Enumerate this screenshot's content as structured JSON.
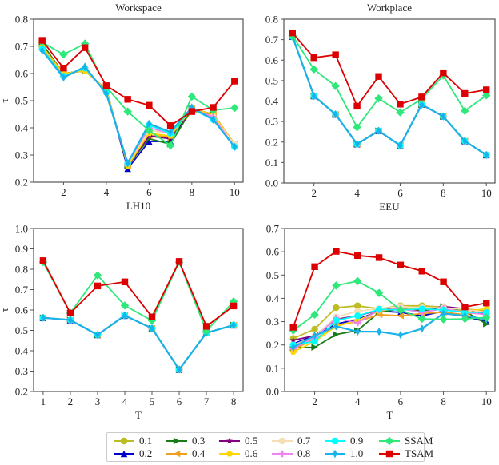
{
  "chart_data": [
    {
      "type": "line",
      "title": "Workspace",
      "xlabel": "LH10",
      "ylabel": "τ",
      "xlim": [
        0.6,
        10.4
      ],
      "ylim": [
        0.2,
        0.8
      ],
      "xticks": [
        2,
        4,
        6,
        8,
        10
      ],
      "yticks": [
        0.2,
        0.3,
        0.4,
        0.5,
        0.6,
        0.7,
        0.8
      ],
      "ytick_labels": [
        "0.2",
        "0.3",
        "0.4",
        "0.5",
        "0.6",
        "0.7",
        "0.8"
      ],
      "x": [
        1,
        2,
        3,
        4,
        5,
        6,
        7,
        8,
        9,
        10
      ],
      "series": [
        {
          "name": "0.1",
          "values": [
            0.7,
            0.6,
            0.61,
            0.54,
            0.26,
            0.37,
            0.36,
            0.46,
            0.45,
            0.34
          ]
        },
        {
          "name": "0.2",
          "values": [
            0.7,
            0.6,
            0.61,
            0.54,
            0.25,
            0.35,
            0.35,
            0.47,
            0.44,
            0.34
          ]
        },
        {
          "name": "0.3",
          "values": [
            0.71,
            0.6,
            0.61,
            0.54,
            0.26,
            0.36,
            0.34,
            0.47,
            0.45,
            0.34
          ]
        },
        {
          "name": "0.4",
          "values": [
            0.7,
            0.6,
            0.61,
            0.54,
            0.26,
            0.37,
            0.37,
            0.47,
            0.45,
            0.34
          ]
        },
        {
          "name": "0.5",
          "values": [
            0.7,
            0.6,
            0.61,
            0.54,
            0.26,
            0.37,
            0.36,
            0.47,
            0.45,
            0.34
          ]
        },
        {
          "name": "0.6",
          "values": [
            0.7,
            0.6,
            0.61,
            0.54,
            0.26,
            0.38,
            0.37,
            0.47,
            0.45,
            0.34
          ]
        },
        {
          "name": "0.7",
          "values": [
            0.69,
            0.59,
            0.62,
            0.53,
            0.27,
            0.39,
            0.38,
            0.47,
            0.44,
            0.34
          ]
        },
        {
          "name": "0.8",
          "values": [
            0.69,
            0.59,
            0.62,
            0.53,
            0.27,
            0.4,
            0.38,
            0.47,
            0.44,
            0.33
          ]
        },
        {
          "name": "0.9",
          "values": [
            0.69,
            0.59,
            0.62,
            0.53,
            0.27,
            0.41,
            0.38,
            0.47,
            0.43,
            0.33
          ]
        },
        {
          "name": "1.0",
          "values": [
            0.685,
            0.585,
            0.625,
            0.525,
            0.27,
            0.415,
            0.385,
            0.475,
            0.43,
            0.33
          ]
        },
        {
          "name": "SSAM",
          "values": [
            0.715,
            0.67,
            0.71,
            0.55,
            0.46,
            0.39,
            0.335,
            0.515,
            0.465,
            0.473
          ]
        },
        {
          "name": "TSAM",
          "values": [
            0.722,
            0.62,
            0.695,
            0.555,
            0.505,
            0.483,
            0.408,
            0.46,
            0.475,
            0.572
          ]
        }
      ]
    },
    {
      "type": "line",
      "title": "Workplace",
      "xlabel": "EEU",
      "ylabel": "",
      "xlim": [
        0.6,
        10.4
      ],
      "ylim": [
        0.0,
        0.8
      ],
      "xticks": [
        2,
        4,
        6,
        8,
        10
      ],
      "yticks": [
        0.0,
        0.1,
        0.2,
        0.3,
        0.4,
        0.5,
        0.6,
        0.7,
        0.8
      ],
      "ytick_labels": [
        "0.0",
        "0.1",
        "0.2",
        "0.3",
        "0.4",
        "0.5",
        "0.6",
        "0.7",
        "0.8"
      ],
      "x": [
        1,
        2,
        3,
        4,
        5,
        6,
        7,
        8,
        9,
        10
      ],
      "series": [
        {
          "name": "0.1",
          "values": [
            0.715,
            0.425,
            0.335,
            0.19,
            0.255,
            0.183,
            0.383,
            0.325,
            0.205,
            0.137
          ]
        },
        {
          "name": "0.2",
          "values": [
            0.715,
            0.425,
            0.335,
            0.19,
            0.255,
            0.183,
            0.383,
            0.325,
            0.205,
            0.137
          ]
        },
        {
          "name": "0.3",
          "values": [
            0.715,
            0.425,
            0.335,
            0.19,
            0.255,
            0.183,
            0.383,
            0.325,
            0.205,
            0.137
          ]
        },
        {
          "name": "0.4",
          "values": [
            0.715,
            0.425,
            0.335,
            0.19,
            0.255,
            0.183,
            0.383,
            0.325,
            0.205,
            0.137
          ]
        },
        {
          "name": "0.5",
          "values": [
            0.715,
            0.425,
            0.335,
            0.19,
            0.255,
            0.183,
            0.383,
            0.325,
            0.205,
            0.137
          ]
        },
        {
          "name": "0.6",
          "values": [
            0.715,
            0.425,
            0.335,
            0.19,
            0.255,
            0.183,
            0.383,
            0.325,
            0.205,
            0.137
          ]
        },
        {
          "name": "0.7",
          "values": [
            0.715,
            0.425,
            0.335,
            0.19,
            0.255,
            0.183,
            0.383,
            0.325,
            0.205,
            0.137
          ]
        },
        {
          "name": "0.8",
          "values": [
            0.715,
            0.425,
            0.335,
            0.19,
            0.255,
            0.183,
            0.383,
            0.325,
            0.205,
            0.137
          ]
        },
        {
          "name": "0.9",
          "values": [
            0.715,
            0.425,
            0.335,
            0.19,
            0.255,
            0.183,
            0.383,
            0.325,
            0.205,
            0.137
          ]
        },
        {
          "name": "1.0",
          "values": [
            0.715,
            0.425,
            0.335,
            0.19,
            0.255,
            0.183,
            0.383,
            0.325,
            0.205,
            0.137
          ]
        },
        {
          "name": "SSAM",
          "values": [
            0.72,
            0.555,
            0.473,
            0.272,
            0.413,
            0.345,
            0.41,
            0.525,
            0.352,
            0.428
          ]
        },
        {
          "name": "TSAM",
          "values": [
            0.733,
            0.612,
            0.626,
            0.375,
            0.52,
            0.385,
            0.42,
            0.538,
            0.437,
            0.455
          ]
        }
      ]
    },
    {
      "type": "line",
      "title": "",
      "xlabel": "T",
      "ylabel": "τ",
      "xlim": [
        0.65,
        8.35
      ],
      "ylim": [
        0.2,
        1.0
      ],
      "xticks": [
        1,
        2,
        3,
        4,
        5,
        6,
        7,
        8
      ],
      "yticks": [
        0.2,
        0.3,
        0.4,
        0.5,
        0.6,
        0.7,
        0.8,
        0.9,
        1.0
      ],
      "ytick_labels": [
        "0.2",
        "0.3",
        "0.4",
        "0.5",
        "0.6",
        "0.7",
        "0.8",
        "0.9",
        "1.0"
      ],
      "x": [
        1,
        2,
        3,
        4,
        5,
        6,
        7,
        8
      ],
      "series": [
        {
          "name": "0.1",
          "values": [
            0.562,
            0.551,
            0.478,
            0.573,
            0.51,
            0.308,
            0.488,
            0.526
          ]
        },
        {
          "name": "0.2",
          "values": [
            0.562,
            0.551,
            0.478,
            0.573,
            0.51,
            0.308,
            0.488,
            0.526
          ]
        },
        {
          "name": "0.3",
          "values": [
            0.562,
            0.551,
            0.478,
            0.573,
            0.51,
            0.308,
            0.488,
            0.526
          ]
        },
        {
          "name": "0.4",
          "values": [
            0.562,
            0.551,
            0.478,
            0.573,
            0.51,
            0.308,
            0.488,
            0.526
          ]
        },
        {
          "name": "0.5",
          "values": [
            0.562,
            0.551,
            0.478,
            0.573,
            0.51,
            0.308,
            0.488,
            0.526
          ]
        },
        {
          "name": "0.6",
          "values": [
            0.562,
            0.551,
            0.478,
            0.573,
            0.51,
            0.308,
            0.488,
            0.526
          ]
        },
        {
          "name": "0.7",
          "values": [
            0.562,
            0.551,
            0.478,
            0.573,
            0.51,
            0.308,
            0.488,
            0.526
          ]
        },
        {
          "name": "0.8",
          "values": [
            0.562,
            0.551,
            0.478,
            0.573,
            0.51,
            0.308,
            0.488,
            0.526
          ]
        },
        {
          "name": "0.9",
          "values": [
            0.562,
            0.551,
            0.478,
            0.573,
            0.51,
            0.308,
            0.488,
            0.526
          ]
        },
        {
          "name": "1.0",
          "values": [
            0.562,
            0.551,
            0.478,
            0.573,
            0.51,
            0.308,
            0.488,
            0.526
          ]
        },
        {
          "name": "SSAM",
          "values": [
            0.835,
            0.585,
            0.77,
            0.622,
            0.548,
            0.835,
            0.497,
            0.642
          ]
        },
        {
          "name": "TSAM",
          "values": [
            0.842,
            0.585,
            0.718,
            0.738,
            0.566,
            0.838,
            0.52,
            0.62
          ]
        }
      ]
    },
    {
      "type": "line",
      "title": "",
      "xlabel": "T",
      "ylabel": "",
      "xlim": [
        0.6,
        10.4
      ],
      "ylim": [
        0.0,
        0.7
      ],
      "xticks": [
        2,
        4,
        6,
        8,
        10
      ],
      "yticks": [
        0.0,
        0.1,
        0.2,
        0.3,
        0.4,
        0.5,
        0.6,
        0.7
      ],
      "ytick_labels": [
        "0.0",
        "0.1",
        "0.2",
        "0.3",
        "0.4",
        "0.5",
        "0.6",
        "0.7"
      ],
      "x": [
        1,
        2,
        3,
        4,
        5,
        6,
        7,
        8,
        9,
        10
      ],
      "series": [
        {
          "name": "0.1",
          "values": [
            0.228,
            0.268,
            0.36,
            0.368,
            0.355,
            0.368,
            0.368,
            0.362,
            0.355,
            0.345
          ]
        },
        {
          "name": "0.2",
          "values": [
            0.205,
            0.24,
            0.29,
            0.31,
            0.345,
            0.34,
            0.325,
            0.345,
            0.322,
            0.3
          ]
        },
        {
          "name": "0.3",
          "values": [
            0.188,
            0.19,
            0.245,
            0.262,
            0.34,
            0.355,
            0.345,
            0.365,
            0.345,
            0.29
          ]
        },
        {
          "name": "0.4",
          "values": [
            0.18,
            0.225,
            0.285,
            0.3,
            0.33,
            0.325,
            0.335,
            0.34,
            0.33,
            0.35
          ]
        },
        {
          "name": "0.5",
          "values": [
            0.22,
            0.24,
            0.31,
            0.325,
            0.35,
            0.36,
            0.35,
            0.365,
            0.355,
            0.33
          ]
        },
        {
          "name": "0.6",
          "values": [
            0.17,
            0.215,
            0.28,
            0.305,
            0.345,
            0.36,
            0.355,
            0.35,
            0.345,
            0.355
          ]
        },
        {
          "name": "0.7",
          "values": [
            0.2,
            0.235,
            0.32,
            0.345,
            0.355,
            0.365,
            0.36,
            0.36,
            0.352,
            0.34
          ]
        },
        {
          "name": "0.8",
          "values": [
            0.185,
            0.23,
            0.315,
            0.295,
            0.35,
            0.355,
            0.34,
            0.355,
            0.34,
            0.33
          ]
        },
        {
          "name": "0.9",
          "values": [
            0.2,
            0.215,
            0.305,
            0.325,
            0.353,
            0.35,
            0.355,
            0.35,
            0.34,
            0.34
          ]
        },
        {
          "name": "1.0",
          "values": [
            0.19,
            0.24,
            0.28,
            0.257,
            0.257,
            0.243,
            0.27,
            0.335,
            0.325,
            0.31
          ]
        },
        {
          "name": "SSAM",
          "values": [
            0.262,
            0.33,
            0.455,
            0.474,
            0.423,
            0.35,
            0.312,
            0.31,
            0.312,
            0.318
          ]
        },
        {
          "name": "TSAM",
          "values": [
            0.276,
            0.536,
            0.602,
            0.584,
            0.575,
            0.543,
            0.517,
            0.471,
            0.363,
            0.38
          ]
        }
      ]
    }
  ],
  "legend": {
    "placement": "bottom-center",
    "items": [
      {
        "label": "0.1",
        "color": "#bcbd22",
        "marker": "circle"
      },
      {
        "label": "0.2",
        "color": "#0000cc",
        "marker": "triangle-up"
      },
      {
        "label": "0.3",
        "color": "#1a7a1a",
        "marker": "triangle-right"
      },
      {
        "label": "0.4",
        "color": "#f0a020",
        "marker": "triangle-left"
      },
      {
        "label": "0.5",
        "color": "#800080",
        "marker": "star"
      },
      {
        "label": "0.6",
        "color": "#ffd700",
        "marker": "pentagon"
      },
      {
        "label": "0.7",
        "color": "#f5deb3",
        "marker": "circle"
      },
      {
        "label": "0.8",
        "color": "#ee82ee",
        "marker": "plus"
      },
      {
        "label": "0.9",
        "color": "#00ffff",
        "marker": "circle"
      },
      {
        "label": "1.0",
        "color": "#1ab2e8",
        "marker": "thin-diamond"
      },
      {
        "label": "SSAM",
        "color": "#2ee87a",
        "marker": "diamond"
      },
      {
        "label": "TSAM",
        "color": "#dd0000",
        "marker": "square"
      }
    ]
  }
}
